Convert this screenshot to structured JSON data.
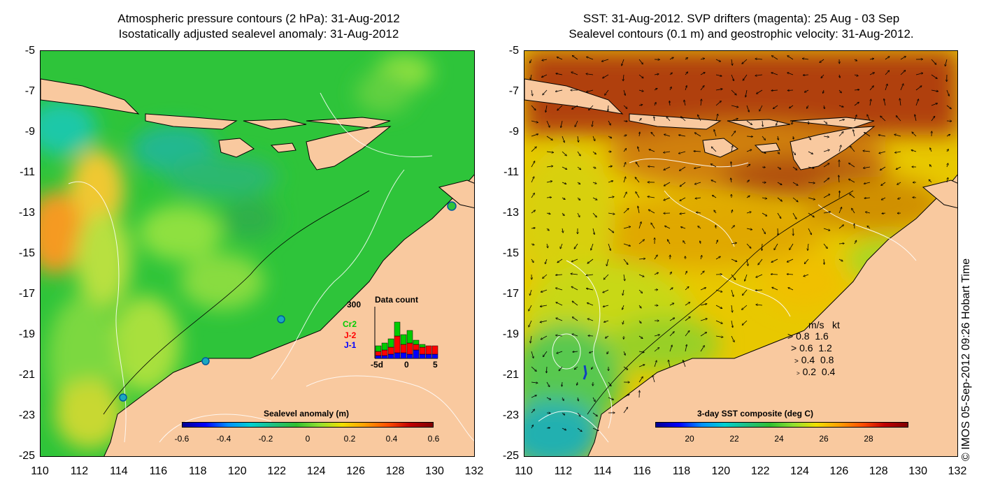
{
  "left_panel": {
    "title_line1": "Atmospheric pressure contours (2 hPa): 31-Aug-2012",
    "title_line2": "Isostatically adjusted sealevel anomaly: 31-Aug-2012",
    "colorbar_label": "Sealevel anomaly (m)",
    "colorbar_ticks": [
      "-0.6",
      "-0.4",
      "-0.2",
      "0",
      "0.2",
      "0.4",
      "0.6"
    ],
    "inset": {
      "title": "Data count",
      "ymax_label": "300",
      "series_labels": [
        "Cr2",
        "J-2",
        "J-1"
      ],
      "x_ticks": [
        "-5d",
        "0",
        "5"
      ],
      "series_colors": [
        "#00cc00",
        "#ff0000",
        "#0000ff"
      ]
    }
  },
  "right_panel": {
    "title_line1": "SST: 31-Aug-2012. SVP drifters (magenta): 25 Aug - 03 Sep",
    "title_line2": "Sealevel contours (0.1 m) and geostrophic velocity: 31-Aug-2012.",
    "colorbar_label": "3-day SST composite (deg C)",
    "colorbar_ticks": [
      "20",
      "22",
      "24",
      "26",
      "28"
    ],
    "speed_legend": {
      "header_ms": "m/s",
      "header_kt": "kt",
      "rows": [
        {
          "ms": "0.8",
          "kt": "1.6"
        },
        {
          "ms": "0.6",
          "kt": "1.2"
        },
        {
          "ms": "0.4",
          "kt": "0.8"
        },
        {
          "ms": "0.2",
          "kt": "0.4"
        }
      ]
    }
  },
  "axes": {
    "y_ticks": [
      "-5",
      "-7",
      "-9",
      "-11",
      "-13",
      "-15",
      "-17",
      "-19",
      "-21",
      "-23",
      "-25"
    ],
    "x_ticks": [
      "110",
      "112",
      "114",
      "116",
      "118",
      "120",
      "122",
      "124",
      "126",
      "128",
      "130",
      "132"
    ]
  },
  "credit": "© IMOS 05-Sep-2012 09:26 Hobart Time",
  "colors": {
    "land": "#f9c99f",
    "sla_base": "#2ec43a",
    "sst_base": "#e8c800"
  }
}
